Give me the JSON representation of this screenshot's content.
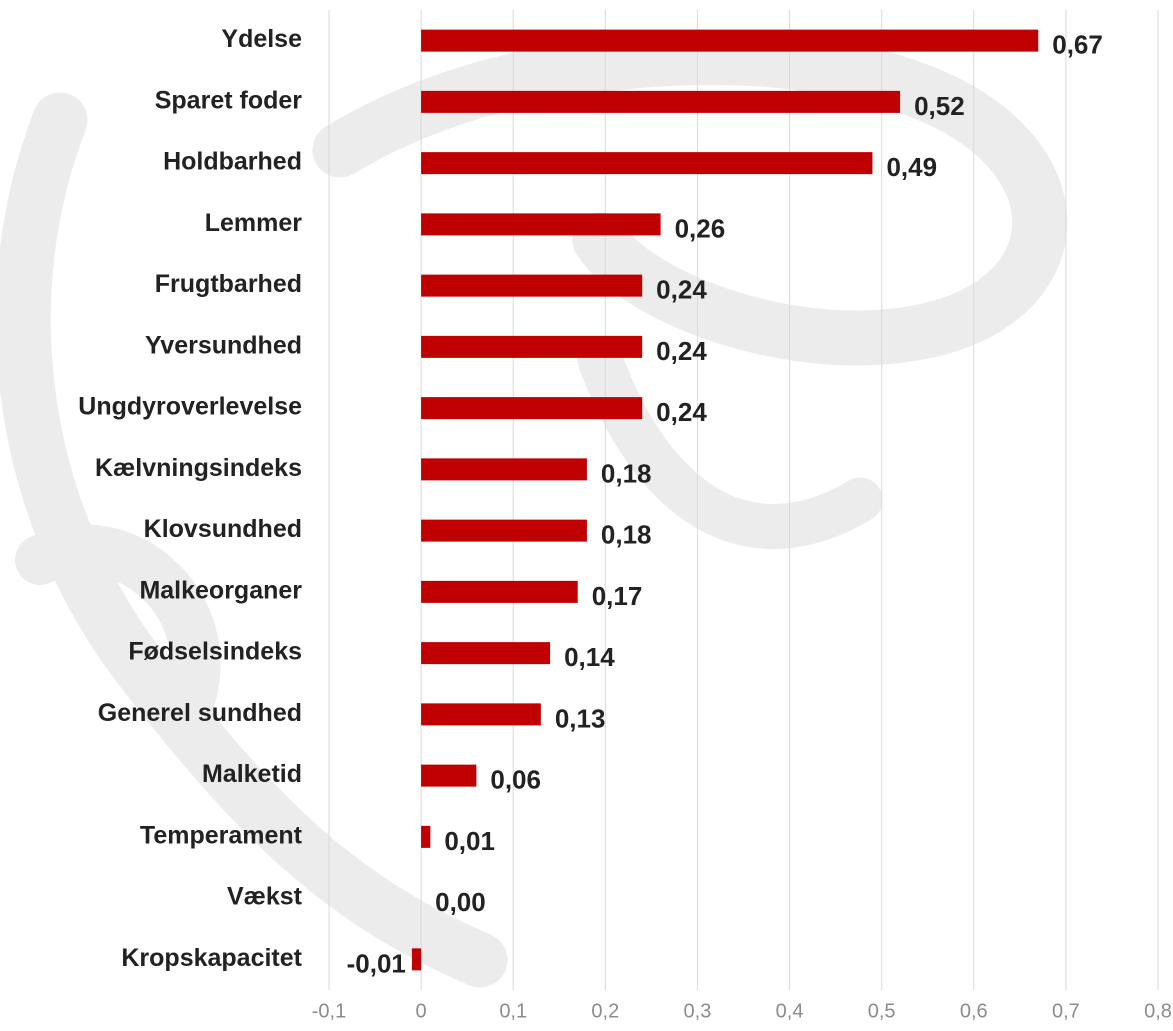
{
  "chart_data": {
    "type": "bar",
    "orientation": "horizontal",
    "categories": [
      "Ydelse",
      "Sparet foder",
      "Holdbarhed",
      "Lemmer",
      "Frugtbarhed",
      "Yversundhed",
      "Ungdyroverlevelse",
      "Kælvningsindeks",
      "Klovsundhed",
      "Malkeorganer",
      "Fødselsindeks",
      "Generel sundhed",
      "Malketid",
      "Temperament",
      "Vækst",
      "Kropskapacitet"
    ],
    "values": [
      0.67,
      0.52,
      0.49,
      0.26,
      0.24,
      0.24,
      0.24,
      0.18,
      0.18,
      0.17,
      0.14,
      0.13,
      0.06,
      0.01,
      0.0,
      -0.01
    ],
    "value_labels": [
      "0,67",
      "0,52",
      "0,49",
      "0,26",
      "0,24",
      "0,24",
      "0,24",
      "0,18",
      "0,18",
      "0,17",
      "0,14",
      "0,13",
      "0,06",
      "0,01",
      "0,00",
      "-0,01"
    ],
    "color": "#c00000",
    "xlim": [
      -0.1,
      0.8
    ],
    "xticks": [
      {
        "value": -0.1,
        "label": "-0,1"
      },
      0,
      {
        "value": 0.1,
        "label": "0,1"
      },
      {
        "value": 0.2,
        "label": "0,2"
      },
      {
        "value": 0.3,
        "label": "0,3"
      },
      {
        "value": 0.4,
        "label": "0,4"
      },
      {
        "value": 0.5,
        "label": "0,5"
      },
      {
        "value": 0.6,
        "label": "0,6"
      },
      {
        "value": 0.7,
        "label": "0,7"
      },
      {
        "value": 0.8,
        "label": "0,8"
      }
    ],
    "grid": true
  }
}
